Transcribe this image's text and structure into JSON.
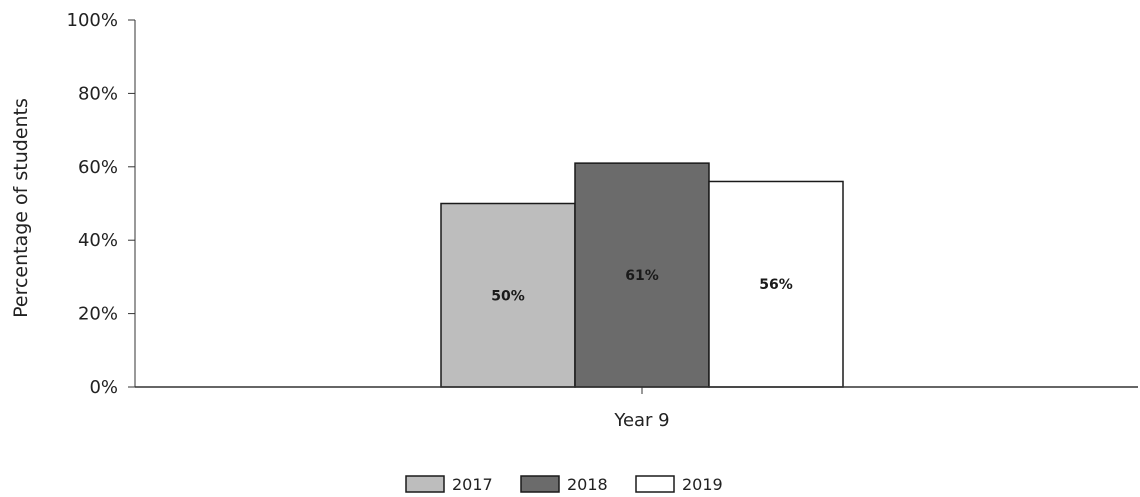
{
  "chart_data": {
    "type": "bar",
    "categories": [
      "Year 9"
    ],
    "series": [
      {
        "name": "2017",
        "values": [
          50
        ],
        "data_label": "50%",
        "color": "#bdbdbd"
      },
      {
        "name": "2018",
        "values": [
          61
        ],
        "data_label": "61%",
        "color": "#6b6b6b"
      },
      {
        "name": "2019",
        "values": [
          56
        ],
        "data_label": "56%",
        "color": "#ffffff"
      }
    ],
    "title": "",
    "xlabel": "",
    "ylabel": "Percentage of students",
    "ylim": [
      0,
      100
    ],
    "yticks": [
      {
        "value": 0,
        "label": "0%"
      },
      {
        "value": 20,
        "label": "20%"
      },
      {
        "value": 40,
        "label": "40%"
      },
      {
        "value": 60,
        "label": "60%"
      },
      {
        "value": 80,
        "label": "80%"
      },
      {
        "value": 100,
        "label": "100%"
      }
    ],
    "grid": false,
    "legend_position": "bottom-center",
    "bar_border_color": "#1a1a1a",
    "axis_color": "#333333"
  }
}
